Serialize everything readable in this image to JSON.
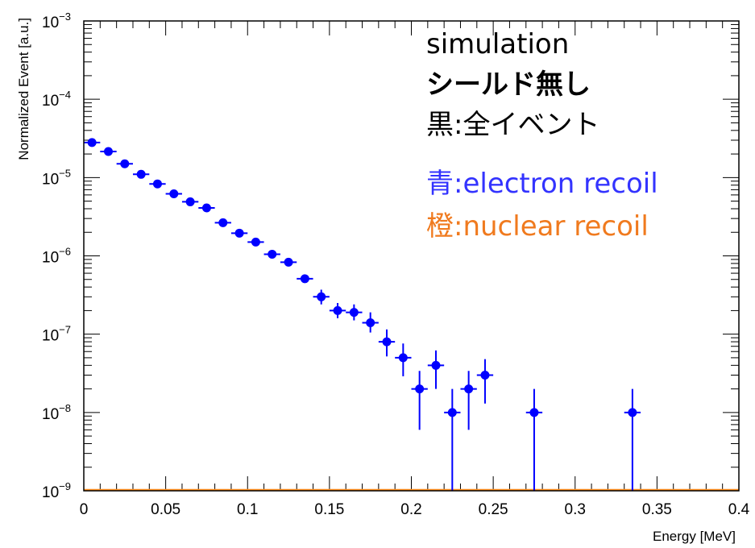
{
  "chart_data": {
    "type": "scatter",
    "xlabel": "Energy [MeV]",
    "ylabel": "Normalized Event [a.u.]",
    "xlim": [
      0,
      0.4
    ],
    "ylim": [
      1e-09,
      0.001
    ],
    "yscale": "log",
    "grid": false,
    "x_tick_labels": [
      "0",
      "0.05",
      "0.1",
      "0.15",
      "0.2",
      "0.25",
      "0.3",
      "0.35",
      "0.4"
    ],
    "y_tick_labels": [
      {
        "base": "10",
        "exp": "−9"
      },
      {
        "base": "10",
        "exp": "−8"
      },
      {
        "base": "10",
        "exp": "−7"
      },
      {
        "base": "10",
        "exp": "−6"
      },
      {
        "base": "10",
        "exp": "−5"
      },
      {
        "base": "10",
        "exp": "−4"
      },
      {
        "base": "10",
        "exp": "−3"
      }
    ],
    "annotations": [
      {
        "text": "simulation",
        "color": "#000000",
        "bold": false
      },
      {
        "text": "シールド無し",
        "color": "#000000",
        "bold": true
      },
      {
        "text": "黒:全イベント",
        "color": "#000000",
        "bold": false
      },
      {
        "text": "青:electron recoil",
        "color": "#3333ff",
        "bold": false
      },
      {
        "text": "橙:nuclear recoil",
        "color": "#f07a1e",
        "bold": false
      }
    ],
    "series": [
      {
        "color": "#0000ff",
        "x_bin_width": 0.01,
        "points": [
          {
            "x": 0.005,
            "y": 2.8e-05,
            "y_lo": 2.8e-05,
            "y_hi": 2.8e-05
          },
          {
            "x": 0.015,
            "y": 2.15e-05,
            "y_lo": 2.15e-05,
            "y_hi": 2.15e-05
          },
          {
            "x": 0.025,
            "y": 1.5e-05,
            "y_lo": 1.5e-05,
            "y_hi": 1.5e-05
          },
          {
            "x": 0.035,
            "y": 1.1e-05,
            "y_lo": 1.1e-05,
            "y_hi": 1.1e-05
          },
          {
            "x": 0.045,
            "y": 8.3e-06,
            "y_lo": 8.3e-06,
            "y_hi": 8.3e-06
          },
          {
            "x": 0.055,
            "y": 6.2e-06,
            "y_lo": 6.2e-06,
            "y_hi": 6.2e-06
          },
          {
            "x": 0.065,
            "y": 4.9e-06,
            "y_lo": 4.9e-06,
            "y_hi": 4.9e-06
          },
          {
            "x": 0.075,
            "y": 4.1e-06,
            "y_lo": 4.1e-06,
            "y_hi": 4.1e-06
          },
          {
            "x": 0.085,
            "y": 2.65e-06,
            "y_lo": 2.65e-06,
            "y_hi": 2.65e-06
          },
          {
            "x": 0.095,
            "y": 1.95e-06,
            "y_lo": 1.95e-06,
            "y_hi": 1.95e-06
          },
          {
            "x": 0.105,
            "y": 1.5e-06,
            "y_lo": 1.5e-06,
            "y_hi": 1.5e-06
          },
          {
            "x": 0.115,
            "y": 1.05e-06,
            "y_lo": 1.05e-06,
            "y_hi": 1.05e-06
          },
          {
            "x": 0.125,
            "y": 8.3e-07,
            "y_lo": 8.3e-07,
            "y_hi": 8.3e-07
          },
          {
            "x": 0.135,
            "y": 5.1e-07,
            "y_lo": 4.7e-07,
            "y_hi": 5.6e-07
          },
          {
            "x": 0.145,
            "y": 3e-07,
            "y_lo": 2.4e-07,
            "y_hi": 3.7e-07
          },
          {
            "x": 0.155,
            "y": 2e-07,
            "y_lo": 1.6e-07,
            "y_hi": 2.5e-07
          },
          {
            "x": 0.165,
            "y": 1.9e-07,
            "y_lo": 1.5e-07,
            "y_hi": 2.4e-07
          },
          {
            "x": 0.175,
            "y": 1.4e-07,
            "y_lo": 1.05e-07,
            "y_hi": 1.9e-07
          },
          {
            "x": 0.185,
            "y": 8e-08,
            "y_lo": 5.2e-08,
            "y_hi": 1.15e-07
          },
          {
            "x": 0.195,
            "y": 5e-08,
            "y_lo": 2.9e-08,
            "y_hi": 7.6e-08
          },
          {
            "x": 0.205,
            "y": 2e-08,
            "y_lo": 6e-09,
            "y_hi": 3.4e-08
          },
          {
            "x": 0.215,
            "y": 4e-08,
            "y_lo": 2e-08,
            "y_hi": 6.2e-08
          },
          {
            "x": 0.225,
            "y": 1e-08,
            "y_lo": 1e-09,
            "y_hi": 2e-08
          },
          {
            "x": 0.235,
            "y": 2e-08,
            "y_lo": 6e-09,
            "y_hi": 3.4e-08
          },
          {
            "x": 0.245,
            "y": 3e-08,
            "y_lo": 1.3e-08,
            "y_hi": 4.8e-08
          },
          {
            "x": 0.275,
            "y": 1e-08,
            "y_lo": 1e-09,
            "y_hi": 2e-08
          },
          {
            "x": 0.335,
            "y": 1e-08,
            "y_lo": 1e-09,
            "y_hi": 2e-08
          }
        ]
      },
      {
        "color": "#ff8c1a",
        "x": [
          0,
          0.4
        ],
        "values": [
          1e-09,
          1e-09
        ]
      }
    ]
  }
}
